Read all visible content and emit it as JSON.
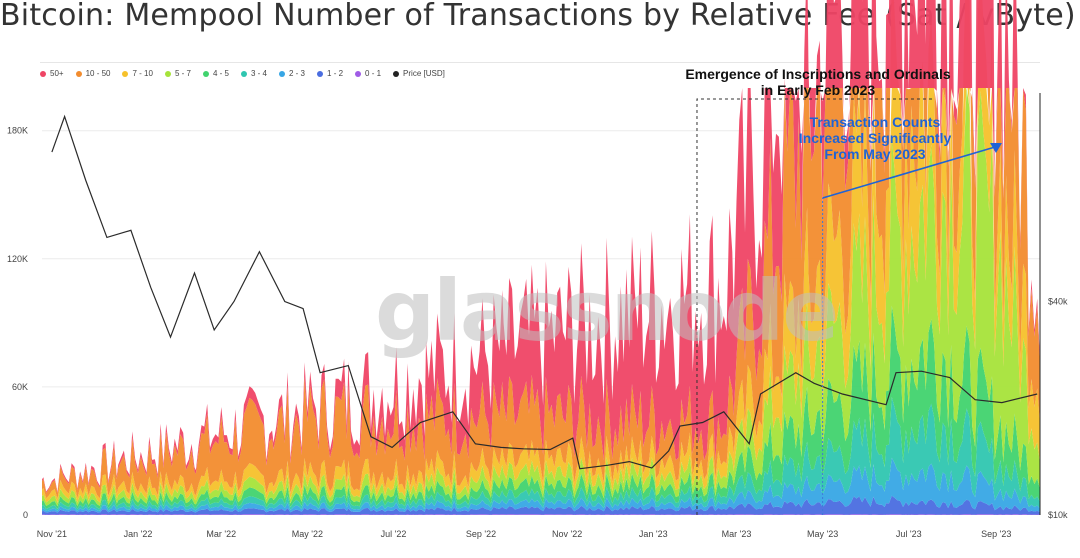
{
  "title": "Bitcoin: Mempool Number of Transactions by Relative Fee (Sat / vByte)",
  "watermark": "glassnode",
  "legend": [
    {
      "label": "50+",
      "color": "#ef4565"
    },
    {
      "label": "10 - 50",
      "color": "#f28c2e"
    },
    {
      "label": "7 - 10",
      "color": "#f6c12b"
    },
    {
      "label": "5 - 7",
      "color": "#a6e33a"
    },
    {
      "label": "4 - 5",
      "color": "#41d36e"
    },
    {
      "label": "3 - 4",
      "color": "#2fc6b0"
    },
    {
      "label": "2 - 3",
      "color": "#37a6e5"
    },
    {
      "label": "1 - 2",
      "color": "#4a6de0"
    },
    {
      "label": "0 - 1",
      "color": "#a05ce6"
    },
    {
      "label": "Price [USD]",
      "color": "#222222"
    }
  ],
  "annotations": {
    "inscriptions": [
      "Emergence of Inscriptions and Ordinals",
      "in Early Feb 2023"
    ],
    "increase": [
      "Transaction Counts",
      "Increased Significantly",
      "From May 2023"
    ]
  },
  "chart_data": {
    "type": "area",
    "x_ticks": [
      "Nov '21",
      "Jan '22",
      "Mar '22",
      "May '22",
      "Jul '22",
      "Sep '22",
      "Nov '22",
      "Jan '23",
      "Mar '23",
      "May '23",
      "Jul '23",
      "Sep '23"
    ],
    "y_left_ticks": [
      "0",
      "60K",
      "120K",
      "180K"
    ],
    "y_left_range": [
      0,
      200000
    ],
    "y_right_ticks": [
      "$10k",
      "$40k"
    ],
    "y_right_range": [
      10000,
      70000
    ],
    "grid": true,
    "price_usd": [
      {
        "x": "2021-11-01",
        "y": 61000
      },
      {
        "x": "2021-11-10",
        "y": 66000
      },
      {
        "x": "2021-11-25",
        "y": 57000
      },
      {
        "x": "2021-12-10",
        "y": 49000
      },
      {
        "x": "2021-12-27",
        "y": 50000
      },
      {
        "x": "2022-01-10",
        "y": 42000
      },
      {
        "x": "2022-01-24",
        "y": 35000
      },
      {
        "x": "2022-02-10",
        "y": 44000
      },
      {
        "x": "2022-02-24",
        "y": 36000
      },
      {
        "x": "2022-03-10",
        "y": 40000
      },
      {
        "x": "2022-03-28",
        "y": 47000
      },
      {
        "x": "2022-04-15",
        "y": 40000
      },
      {
        "x": "2022-04-28",
        "y": 39000
      },
      {
        "x": "2022-05-10",
        "y": 30000
      },
      {
        "x": "2022-05-30",
        "y": 31000
      },
      {
        "x": "2022-06-15",
        "y": 21000
      },
      {
        "x": "2022-06-30",
        "y": 19500
      },
      {
        "x": "2022-07-20",
        "y": 23000
      },
      {
        "x": "2022-08-12",
        "y": 24500
      },
      {
        "x": "2022-08-28",
        "y": 20000
      },
      {
        "x": "2022-09-15",
        "y": 19500
      },
      {
        "x": "2022-10-01",
        "y": 19300
      },
      {
        "x": "2022-10-20",
        "y": 19200
      },
      {
        "x": "2022-11-05",
        "y": 20800
      },
      {
        "x": "2022-11-10",
        "y": 16500
      },
      {
        "x": "2022-11-30",
        "y": 17000
      },
      {
        "x": "2022-12-15",
        "y": 17500
      },
      {
        "x": "2022-12-31",
        "y": 16600
      },
      {
        "x": "2023-01-12",
        "y": 19000
      },
      {
        "x": "2023-01-20",
        "y": 22500
      },
      {
        "x": "2023-02-05",
        "y": 23000
      },
      {
        "x": "2023-02-20",
        "y": 24500
      },
      {
        "x": "2023-03-10",
        "y": 20000
      },
      {
        "x": "2023-03-18",
        "y": 27000
      },
      {
        "x": "2023-04-12",
        "y": 30000
      },
      {
        "x": "2023-04-25",
        "y": 28500
      },
      {
        "x": "2023-05-15",
        "y": 27000
      },
      {
        "x": "2023-06-15",
        "y": 25500
      },
      {
        "x": "2023-06-22",
        "y": 30000
      },
      {
        "x": "2023-07-10",
        "y": 30200
      },
      {
        "x": "2023-07-30",
        "y": 29300
      },
      {
        "x": "2023-08-17",
        "y": 26200
      },
      {
        "x": "2023-09-05",
        "y": 25800
      },
      {
        "x": "2023-09-30",
        "y": 27000
      }
    ],
    "series": [
      {
        "name": "50+",
        "values": [
          {
            "x": "2021-11-01",
            "y": 800
          },
          {
            "x": "2022-05-12",
            "y": 5000
          },
          {
            "x": "2023-05-08",
            "y": 80000
          },
          {
            "x": "2023-05-20",
            "y": 20000
          },
          {
            "x": "2023-09-30",
            "y": 5000
          }
        ]
      },
      {
        "name": "10 - 50",
        "values": [
          {
            "x": "2021-11-01",
            "y": 4000
          },
          {
            "x": "2022-05-12",
            "y": 28000
          },
          {
            "x": "2023-02-20",
            "y": 15000
          },
          {
            "x": "2023-05-10",
            "y": 110000
          },
          {
            "x": "2023-06-10",
            "y": 95000
          },
          {
            "x": "2023-09-10",
            "y": 95000
          },
          {
            "x": "2023-09-30",
            "y": 45000
          }
        ]
      },
      {
        "name": "7 - 10",
        "values": [
          {
            "x": "2021-11-01",
            "y": 3000
          },
          {
            "x": "2023-02-20",
            "y": 8000
          },
          {
            "x": "2023-05-15",
            "y": 40000
          },
          {
            "x": "2023-06-25",
            "y": 60000
          },
          {
            "x": "2023-09-20",
            "y": 30000
          }
        ]
      },
      {
        "name": "5 - 7",
        "values": [
          {
            "x": "2021-11-01",
            "y": 2500
          },
          {
            "x": "2023-02-20",
            "y": 6000
          },
          {
            "x": "2023-06-01",
            "y": 45000
          },
          {
            "x": "2023-08-01",
            "y": 80000
          },
          {
            "x": "2023-09-01",
            "y": 85000
          },
          {
            "x": "2023-09-30",
            "y": 20000
          }
        ]
      },
      {
        "name": "4 - 5",
        "values": [
          {
            "x": "2021-11-01",
            "y": 2000
          },
          {
            "x": "2023-02-20",
            "y": 5000
          },
          {
            "x": "2023-05-20",
            "y": 25000
          },
          {
            "x": "2023-07-20",
            "y": 35000
          },
          {
            "x": "2023-09-30",
            "y": 10000
          }
        ]
      },
      {
        "name": "3 - 4",
        "values": [
          {
            "x": "2021-11-01",
            "y": 1500
          },
          {
            "x": "2023-02-20",
            "y": 4000
          },
          {
            "x": "2023-05-20",
            "y": 15000
          },
          {
            "x": "2023-07-20",
            "y": 25000
          },
          {
            "x": "2023-09-30",
            "y": 5000
          }
        ]
      },
      {
        "name": "2 - 3",
        "values": [
          {
            "x": "2021-11-01",
            "y": 1200
          },
          {
            "x": "2023-02-20",
            "y": 3000
          },
          {
            "x": "2023-05-20",
            "y": 10000
          },
          {
            "x": "2023-07-20",
            "y": 15000
          },
          {
            "x": "2023-09-30",
            "y": 3000
          }
        ]
      },
      {
        "name": "1 - 2",
        "values": [
          {
            "x": "2021-11-01",
            "y": 1500
          },
          {
            "x": "2023-02-20",
            "y": 3000
          },
          {
            "x": "2023-05-20",
            "y": 6000
          },
          {
            "x": "2023-07-20",
            "y": 6000
          },
          {
            "x": "2023-09-30",
            "y": 2000
          }
        ]
      },
      {
        "name": "0 - 1",
        "values": [
          {
            "x": "2021-11-01",
            "y": 300
          },
          {
            "x": "2023-09-30",
            "y": 300
          }
        ]
      }
    ]
  }
}
